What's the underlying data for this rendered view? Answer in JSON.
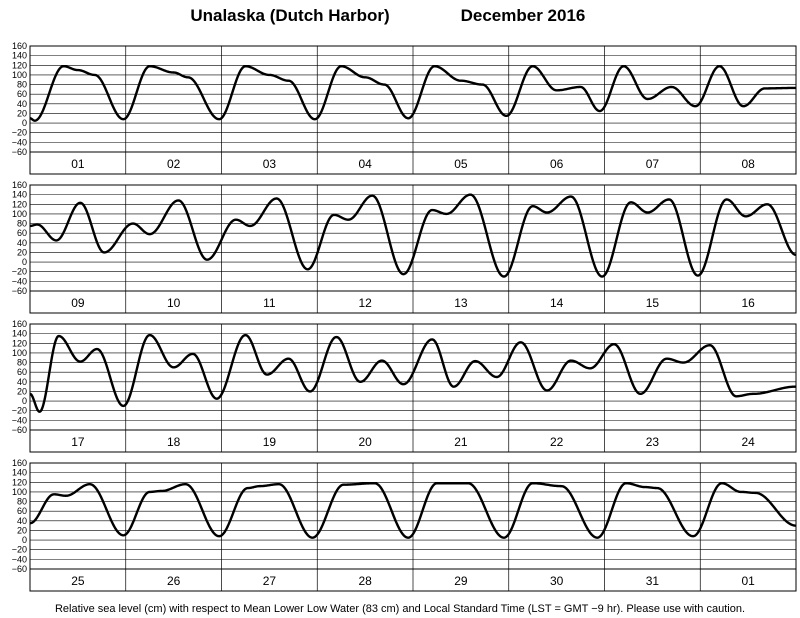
{
  "chart_data": {
    "type": "line",
    "title": "Unalaska (Dutch Harbor)",
    "subtitle": "December   2016",
    "footnote": "Relative sea level (cm) with respect to Mean Lower Low Water (83 cm) and Local Standard Time (LST = GMT −9 hr). Please use with caution.",
    "ylim": [
      -60,
      160
    ],
    "yticks": [
      "160",
      "140",
      "120",
      "100",
      "80",
      "60",
      "40",
      "20",
      "0",
      "−20",
      "−40",
      "−60"
    ],
    "grid": true,
    "panels": [
      {
        "days": [
          "01",
          "02",
          "03",
          "04",
          "05",
          "06",
          "07",
          "08"
        ],
        "extrema": [
          {
            "t": 0.0,
            "v": 10
          },
          {
            "t": 0.1,
            "v": 5
          },
          {
            "t": 0.7,
            "v": 118
          },
          {
            "t": 1.0,
            "v": 110
          },
          {
            "t": 1.35,
            "v": 100
          },
          {
            "t": 1.95,
            "v": 8
          },
          {
            "t": 2.5,
            "v": 118
          },
          {
            "t": 3.0,
            "v": 105
          },
          {
            "t": 3.3,
            "v": 95
          },
          {
            "t": 3.95,
            "v": 8
          },
          {
            "t": 4.5,
            "v": 118
          },
          {
            "t": 5.0,
            "v": 100
          },
          {
            "t": 5.4,
            "v": 88
          },
          {
            "t": 5.95,
            "v": 8
          },
          {
            "t": 6.5,
            "v": 118
          },
          {
            "t": 7.0,
            "v": 95
          },
          {
            "t": 7.4,
            "v": 80
          },
          {
            "t": 7.9,
            "v": 10
          },
          {
            "t": 8.45,
            "v": 118
          },
          {
            "t": 9.0,
            "v": 88
          },
          {
            "t": 9.45,
            "v": 80
          },
          {
            "t": 9.95,
            "v": 15
          },
          {
            "t": 10.5,
            "v": 118
          },
          {
            "t": 11.0,
            "v": 68
          },
          {
            "t": 11.5,
            "v": 75
          },
          {
            "t": 11.9,
            "v": 25
          },
          {
            "t": 12.4,
            "v": 118
          },
          {
            "t": 12.9,
            "v": 50
          },
          {
            "t": 13.4,
            "v": 75
          },
          {
            "t": 13.9,
            "v": 35
          },
          {
            "t": 14.4,
            "v": 118
          },
          {
            "t": 14.9,
            "v": 35
          },
          {
            "t": 15.35,
            "v": 72
          },
          {
            "t": 16.0,
            "v": 73
          }
        ]
      },
      {
        "days": [
          "09",
          "10",
          "11",
          "12",
          "13",
          "14",
          "15",
          "16"
        ],
        "extrema": [
          {
            "t": 0.0,
            "v": 75
          },
          {
            "t": 0.15,
            "v": 78
          },
          {
            "t": 0.55,
            "v": 45
          },
          {
            "t": 1.05,
            "v": 123
          },
          {
            "t": 1.55,
            "v": 20
          },
          {
            "t": 2.15,
            "v": 80
          },
          {
            "t": 2.5,
            "v": 58
          },
          {
            "t": 3.1,
            "v": 128
          },
          {
            "t": 3.7,
            "v": 5
          },
          {
            "t": 4.3,
            "v": 88
          },
          {
            "t": 4.6,
            "v": 75
          },
          {
            "t": 5.15,
            "v": 132
          },
          {
            "t": 5.8,
            "v": -15
          },
          {
            "t": 6.35,
            "v": 98
          },
          {
            "t": 6.65,
            "v": 88
          },
          {
            "t": 7.15,
            "v": 138
          },
          {
            "t": 7.8,
            "v": -25
          },
          {
            "t": 8.4,
            "v": 108
          },
          {
            "t": 8.7,
            "v": 100
          },
          {
            "t": 9.2,
            "v": 140
          },
          {
            "t": 9.9,
            "v": -30
          },
          {
            "t": 10.5,
            "v": 116
          },
          {
            "t": 10.8,
            "v": 103
          },
          {
            "t": 11.3,
            "v": 136
          },
          {
            "t": 11.95,
            "v": -30
          },
          {
            "t": 12.55,
            "v": 124
          },
          {
            "t": 12.9,
            "v": 103
          },
          {
            "t": 13.35,
            "v": 130
          },
          {
            "t": 13.95,
            "v": -28
          },
          {
            "t": 14.55,
            "v": 130
          },
          {
            "t": 14.95,
            "v": 95
          },
          {
            "t": 15.4,
            "v": 120
          },
          {
            "t": 16.0,
            "v": 15
          }
        ]
      },
      {
        "days": [
          "17",
          "18",
          "19",
          "20",
          "21",
          "22",
          "23",
          "24"
        ],
        "extrema": [
          {
            "t": 0.0,
            "v": 15
          },
          {
            "t": 0.2,
            "v": -22
          },
          {
            "t": 0.6,
            "v": 135
          },
          {
            "t": 1.05,
            "v": 82
          },
          {
            "t": 1.4,
            "v": 108
          },
          {
            "t": 1.95,
            "v": -10
          },
          {
            "t": 2.5,
            "v": 137
          },
          {
            "t": 3.0,
            "v": 70
          },
          {
            "t": 3.4,
            "v": 98
          },
          {
            "t": 3.9,
            "v": 5
          },
          {
            "t": 4.5,
            "v": 137
          },
          {
            "t": 4.95,
            "v": 55
          },
          {
            "t": 5.4,
            "v": 88
          },
          {
            "t": 5.85,
            "v": 20
          },
          {
            "t": 6.4,
            "v": 133
          },
          {
            "t": 6.9,
            "v": 40
          },
          {
            "t": 7.35,
            "v": 84
          },
          {
            "t": 7.8,
            "v": 35
          },
          {
            "t": 8.4,
            "v": 128
          },
          {
            "t": 8.85,
            "v": 30
          },
          {
            "t": 9.3,
            "v": 83
          },
          {
            "t": 9.75,
            "v": 50
          },
          {
            "t": 10.25,
            "v": 122
          },
          {
            "t": 10.8,
            "v": 22
          },
          {
            "t": 11.3,
            "v": 84
          },
          {
            "t": 11.7,
            "v": 68
          },
          {
            "t": 12.2,
            "v": 118
          },
          {
            "t": 12.75,
            "v": 15
          },
          {
            "t": 13.3,
            "v": 88
          },
          {
            "t": 13.65,
            "v": 80
          },
          {
            "t": 14.2,
            "v": 116
          },
          {
            "t": 14.75,
            "v": 10
          },
          {
            "t": 15.1,
            "v": 15
          },
          {
            "t": 16.0,
            "v": 30
          }
        ]
      },
      {
        "days": [
          "25",
          "26",
          "27",
          "28",
          "29",
          "30",
          "31",
          "01"
        ],
        "extrema": [
          {
            "t": 0.0,
            "v": 35
          },
          {
            "t": 0.5,
            "v": 95
          },
          {
            "t": 0.75,
            "v": 92
          },
          {
            "t": 1.25,
            "v": 116
          },
          {
            "t": 1.95,
            "v": 10
          },
          {
            "t": 2.5,
            "v": 100
          },
          {
            "t": 2.75,
            "v": 102
          },
          {
            "t": 3.25,
            "v": 116
          },
          {
            "t": 3.95,
            "v": 8
          },
          {
            "t": 4.55,
            "v": 108
          },
          {
            "t": 4.8,
            "v": 112
          },
          {
            "t": 5.2,
            "v": 116
          },
          {
            "t": 5.9,
            "v": 5
          },
          {
            "t": 6.55,
            "v": 115
          },
          {
            "t": 7.2,
            "v": 118
          },
          {
            "t": 7.9,
            "v": 5
          },
          {
            "t": 8.5,
            "v": 118
          },
          {
            "t": 9.15,
            "v": 118
          },
          {
            "t": 9.9,
            "v": 5
          },
          {
            "t": 10.5,
            "v": 118
          },
          {
            "t": 11.1,
            "v": 112
          },
          {
            "t": 11.85,
            "v": 5
          },
          {
            "t": 12.45,
            "v": 118
          },
          {
            "t": 12.85,
            "v": 110
          },
          {
            "t": 13.1,
            "v": 108
          },
          {
            "t": 13.85,
            "v": 8
          },
          {
            "t": 14.45,
            "v": 118
          },
          {
            "t": 14.85,
            "v": 100
          },
          {
            "t": 15.15,
            "v": 98
          },
          {
            "t": 16.0,
            "v": 30
          }
        ]
      }
    ]
  }
}
